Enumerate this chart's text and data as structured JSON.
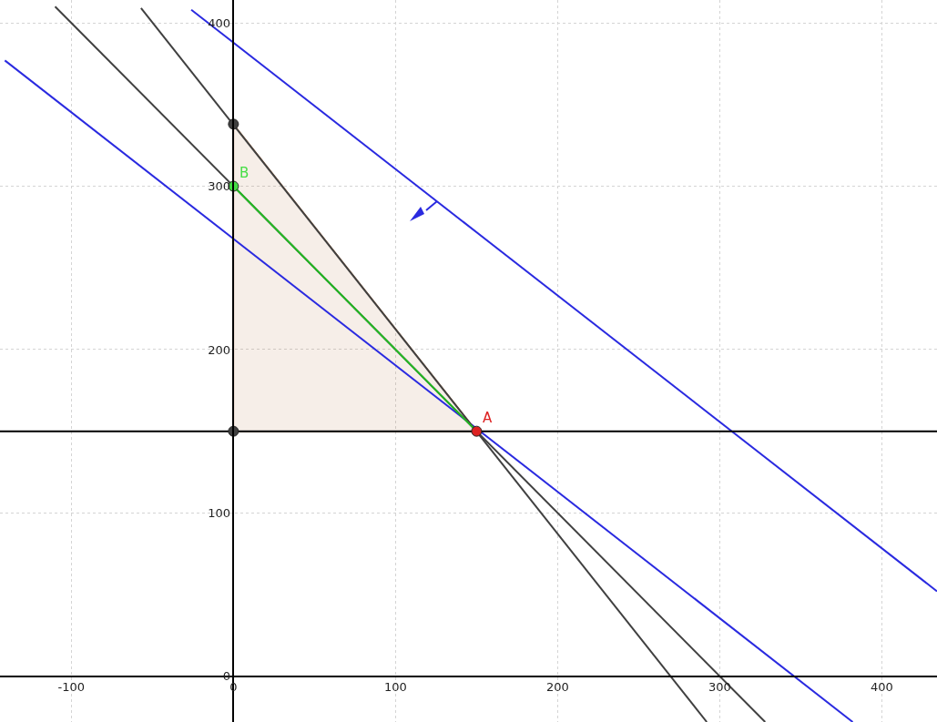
{
  "chart_data": {
    "type": "line",
    "xlim": [
      -144,
      434
    ],
    "ylim": [
      -28,
      414
    ],
    "xticks": [
      -100,
      0,
      100,
      200,
      300,
      400
    ],
    "yticks": [
      0,
      100,
      200,
      300,
      400
    ],
    "grid": true,
    "annotations": [
      {
        "text": "A",
        "x": 150,
        "y": 150
      },
      {
        "text": "B",
        "x": 0,
        "y": 300
      }
    ],
    "series": [
      {
        "type": "area",
        "color": "#b5703f",
        "x": [
          0,
          0,
          150,
          0
        ],
        "values": [
          150,
          338,
          150,
          150
        ]
      },
      {
        "color": "#2a2ae0",
        "x": [
          -141,
          382
        ],
        "values": [
          377,
          -28
        ]
      },
      {
        "color": "#2a2ae0",
        "x": [
          -26,
          434
        ],
        "values": [
          408,
          52
        ]
      },
      {
        "color": "#404040",
        "x": [
          -57,
          292
        ],
        "values": [
          409,
          -28
        ]
      },
      {
        "color": "#404040",
        "x": [
          -110,
          328
        ],
        "values": [
          410,
          -28
        ]
      },
      {
        "color": "#000000",
        "x": [
          -144,
          434
        ],
        "values": [
          150,
          150
        ]
      },
      {
        "color": "#22bb22",
        "x": [
          0,
          150
        ],
        "values": [
          300,
          150
        ]
      },
      {
        "type": "scatter",
        "marker": "circle",
        "color": "#404040",
        "x": [
          0,
          0
        ],
        "values": [
          338,
          150
        ]
      },
      {
        "type": "scatter",
        "marker": "circle",
        "color": "#44dd44",
        "x": [
          0
        ],
        "values": [
          300
        ]
      },
      {
        "type": "scatter",
        "marker": "circle",
        "color": "#dd2222",
        "x": [
          150
        ],
        "values": [
          150
        ]
      }
    ]
  }
}
